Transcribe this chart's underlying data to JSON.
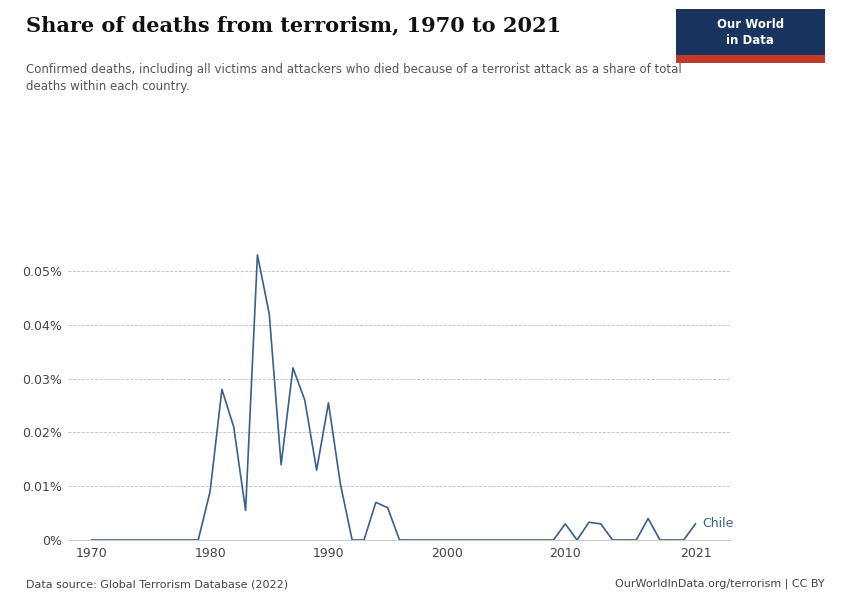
{
  "title": "Share of deaths from terrorism, 1970 to 2021",
  "subtitle": "Confirmed deaths, including all victims and attackers who died because of a terrorist attack as a share of total\ndeaths within each country.",
  "datasource": "Data source: Global Terrorism Database (2022)",
  "source_right": "OurWorldInData.org/terrorism | CC BY",
  "country_label": "Chile",
  "line_color": "#3a5f8a",
  "background_color": "#ffffff",
  "years": [
    1970,
    1971,
    1972,
    1973,
    1974,
    1975,
    1976,
    1977,
    1978,
    1979,
    1980,
    1981,
    1982,
    1983,
    1984,
    1985,
    1986,
    1987,
    1988,
    1989,
    1990,
    1991,
    1992,
    1993,
    1994,
    1995,
    1996,
    1997,
    1998,
    1999,
    2000,
    2001,
    2002,
    2003,
    2004,
    2005,
    2006,
    2007,
    2008,
    2009,
    2010,
    2011,
    2012,
    2013,
    2014,
    2015,
    2016,
    2017,
    2018,
    2019,
    2020,
    2021
  ],
  "values": [
    0.0,
    0.0,
    0.0,
    0.0,
    0.0,
    0.0,
    0.0,
    0.0,
    0.0,
    0.0,
    9e-05,
    0.00028,
    0.00021,
    5.5e-05,
    0.00053,
    0.00042,
    0.00014,
    0.00032,
    0.00026,
    0.00013,
    0.000255,
    0.000105,
    0.0,
    0.0,
    7e-05,
    6e-05,
    0.0,
    0.0,
    0.0,
    0.0,
    0.0,
    0.0,
    0.0,
    0.0,
    0.0,
    0.0,
    0.0,
    0.0,
    0.0,
    0.0,
    3e-05,
    0.0,
    3.3e-05,
    3e-05,
    0.0,
    0.0,
    0.0,
    4e-05,
    0.0,
    0.0,
    0.0,
    3e-05
  ],
  "ylim": [
    0.0,
    0.00058
  ],
  "yticks": [
    0.0,
    0.0001,
    0.0002,
    0.0003,
    0.0004,
    0.0005
  ],
  "ytick_labels": [
    "0%",
    "0.01%",
    "0.02%",
    "0.03%",
    "0.04%",
    "0.05%"
  ],
  "xticks": [
    1970,
    1980,
    1990,
    2000,
    2010,
    2021
  ],
  "logo_bg": "#1a3460",
  "logo_red": "#c0392b",
  "logo_text1": "Our World",
  "logo_text2": "in Data"
}
